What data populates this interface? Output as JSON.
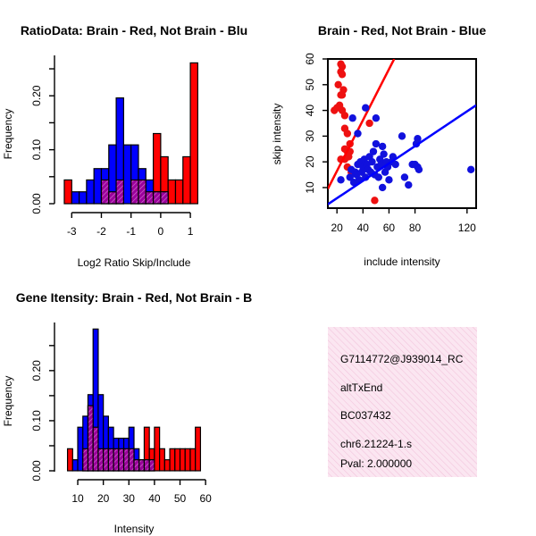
{
  "colors": {
    "red": "#ff0000",
    "blue": "#0000ff",
    "purple": "#b000b0",
    "diag_red": "#ee1111",
    "diag_blue": "#1111dd",
    "pval": "#b00000",
    "panel_bg": "#fbe4f0",
    "panel_hatch": "#f3c2dc"
  },
  "chart_data": [
    {
      "type": "bar",
      "title": "RatioData: Brain - Red, Not Brain - Blu",
      "xlabel": "Log2 Ratio Skip/Include",
      "ylabel": "Frequency",
      "xlim": [
        -3.4,
        1.6
      ],
      "ylim": [
        0,
        0.26
      ],
      "xticks": [
        -3,
        -2,
        -1,
        0,
        1
      ],
      "xtick_labels": [
        "-3",
        "-2",
        "-1",
        "0",
        "1"
      ],
      "yticks": [
        0.0,
        0.1,
        0.2
      ],
      "ytick_labels": [
        "0.00",
        "0.10",
        "0.20"
      ],
      "bin_width": 0.25,
      "series": [
        {
          "name": "Brain",
          "color": "red",
          "bins": [
            [
              -3.25,
              0.044
            ],
            [
              -2.0,
              0.044
            ],
            [
              -1.75,
              0.022
            ],
            [
              -1.5,
              0.044
            ],
            [
              -1.0,
              0.044
            ],
            [
              -0.75,
              0.044
            ],
            [
              -0.5,
              0.022
            ],
            [
              -0.25,
              0.13
            ],
            [
              0.0,
              0.087
            ],
            [
              0.25,
              0.044
            ],
            [
              0.5,
              0.044
            ],
            [
              0.75,
              0.087
            ],
            [
              1.0,
              0.261
            ]
          ]
        },
        {
          "name": "Not Brain",
          "color": "blue",
          "bins": [
            [
              -3.0,
              0.022
            ],
            [
              -2.75,
              0.022
            ],
            [
              -2.5,
              0.044
            ],
            [
              -2.25,
              0.065
            ],
            [
              -2.0,
              0.065
            ],
            [
              -1.75,
              0.109
            ],
            [
              -1.5,
              0.196
            ],
            [
              -1.25,
              0.109
            ],
            [
              -1.0,
              0.109
            ],
            [
              -0.75,
              0.065
            ],
            [
              -0.5,
              0.044
            ],
            [
              -0.25,
              0.022
            ],
            [
              0.0,
              0.022
            ]
          ]
        }
      ]
    },
    {
      "type": "scatter",
      "title": "Brain - Red, Not Brain - Blue",
      "xlabel": "include intensity",
      "ylabel": "skip intensity",
      "xlim": [
        13,
        127
      ],
      "ylim": [
        2,
        60
      ],
      "xticks": [
        20,
        40,
        60,
        80,
        120
      ],
      "xtick_labels": [
        "20",
        "40",
        "60",
        "80",
        "120"
      ],
      "yticks": [
        10,
        20,
        30,
        40,
        50,
        60
      ],
      "ytick_labels": [
        "10",
        "20",
        "30",
        "40",
        "50",
        "60"
      ],
      "series": [
        {
          "name": "Brain",
          "color": "red",
          "points": [
            [
              23,
              58
            ],
            [
              24,
              57
            ],
            [
              23,
              55
            ],
            [
              24,
              54
            ],
            [
              21,
              50
            ],
            [
              25,
              48
            ],
            [
              23,
              46
            ],
            [
              24,
              46
            ],
            [
              18,
              40
            ],
            [
              20,
              41
            ],
            [
              22,
              42
            ],
            [
              24,
              40
            ],
            [
              26,
              38
            ],
            [
              26,
              33
            ],
            [
              28,
              31
            ],
            [
              26,
              25
            ],
            [
              28,
              24
            ],
            [
              30,
              24
            ],
            [
              30,
              27
            ],
            [
              23,
              21
            ],
            [
              26,
              21
            ],
            [
              29,
              22
            ],
            [
              28,
              18
            ],
            [
              31,
              16
            ],
            [
              45,
              35
            ],
            [
              49,
              5
            ]
          ],
          "fit": [
            [
              13,
              9.5
            ],
            [
              64,
              60
            ]
          ]
        },
        {
          "name": "Not Brain",
          "color": "blue",
          "points": [
            [
              23,
              13
            ],
            [
              30,
              14
            ],
            [
              31,
              17
            ],
            [
              33,
              12
            ],
            [
              34,
              16
            ],
            [
              35,
              15
            ],
            [
              36,
              19
            ],
            [
              37,
              13
            ],
            [
              38,
              20
            ],
            [
              39,
              16
            ],
            [
              40,
              18
            ],
            [
              41,
              21
            ],
            [
              42,
              14
            ],
            [
              43,
              19
            ],
            [
              44,
              17
            ],
            [
              45,
              22
            ],
            [
              46,
              16
            ],
            [
              47,
              20
            ],
            [
              48,
              24
            ],
            [
              49,
              15
            ],
            [
              50,
              27
            ],
            [
              51,
              18
            ],
            [
              52,
              14
            ],
            [
              53,
              21
            ],
            [
              54,
              19
            ],
            [
              55,
              26
            ],
            [
              56,
              23
            ],
            [
              57,
              16
            ],
            [
              58,
              20
            ],
            [
              59,
              18
            ],
            [
              60,
              13
            ],
            [
              62,
              20
            ],
            [
              63,
              22
            ],
            [
              65,
              19
            ],
            [
              70,
              30
            ],
            [
              72,
              14
            ],
            [
              75,
              11
            ],
            [
              78,
              19
            ],
            [
              80,
              19
            ],
            [
              81,
              27
            ],
            [
              82,
              29
            ],
            [
              82,
              18
            ],
            [
              83,
              17
            ],
            [
              123,
              17
            ],
            [
              42,
              41
            ],
            [
              36,
              31
            ],
            [
              32,
              37
            ],
            [
              50,
              37
            ],
            [
              55,
              10
            ]
          ],
          "fit": [
            [
              13,
              3.5
            ],
            [
              127,
              42
            ]
          ]
        }
      ]
    },
    {
      "type": "bar",
      "title": "Gene Itensity: Brain - Red, Not Brain - B",
      "xlabel": "Intensity",
      "ylabel": "Frequency",
      "xlim": [
        3,
        61
      ],
      "ylim": [
        0,
        0.28
      ],
      "xticks": [
        10,
        20,
        30,
        40,
        50,
        60
      ],
      "xtick_labels": [
        "10",
        "20",
        "30",
        "40",
        "50",
        "60"
      ],
      "yticks": [
        0.0,
        0.1,
        0.2
      ],
      "ytick_labels": [
        "0.00",
        "0.10",
        "0.20"
      ],
      "bin_width": 2,
      "series": [
        {
          "name": "Brain",
          "color": "red",
          "bins": [
            [
              6,
              0.044
            ],
            [
              12,
              0.044
            ],
            [
              14,
              0.13
            ],
            [
              16,
              0.087
            ],
            [
              18,
              0.044
            ],
            [
              20,
              0.044
            ],
            [
              22,
              0.044
            ],
            [
              24,
              0.044
            ],
            [
              26,
              0.044
            ],
            [
              28,
              0.044
            ],
            [
              30,
              0.044
            ],
            [
              32,
              0.022
            ],
            [
              34,
              0.022
            ],
            [
              36,
              0.087
            ],
            [
              38,
              0.044
            ],
            [
              40,
              0.087
            ],
            [
              42,
              0.044
            ],
            [
              44,
              0.022
            ],
            [
              46,
              0.044
            ],
            [
              48,
              0.044
            ],
            [
              50,
              0.044
            ],
            [
              52,
              0.044
            ],
            [
              54,
              0.044
            ],
            [
              56,
              0.087
            ]
          ]
        },
        {
          "name": "Not Brain",
          "color": "blue",
          "bins": [
            [
              8,
              0.022
            ],
            [
              10,
              0.087
            ],
            [
              12,
              0.109
            ],
            [
              14,
              0.152
            ],
            [
              16,
              0.283
            ],
            [
              18,
              0.152
            ],
            [
              20,
              0.109
            ],
            [
              22,
              0.087
            ],
            [
              24,
              0.065
            ],
            [
              26,
              0.065
            ],
            [
              28,
              0.065
            ],
            [
              30,
              0.087
            ],
            [
              32,
              0.044
            ],
            [
              34,
              0.022
            ],
            [
              36,
              0.022
            ],
            [
              38,
              0.022
            ]
          ]
        }
      ]
    }
  ],
  "info_panel": {
    "lines": [
      "G7114772@J939014_RC",
      "altTxEnd",
      "BC037432",
      "chr6.21224-1.s"
    ],
    "pval": "Pval: 2.000000"
  }
}
